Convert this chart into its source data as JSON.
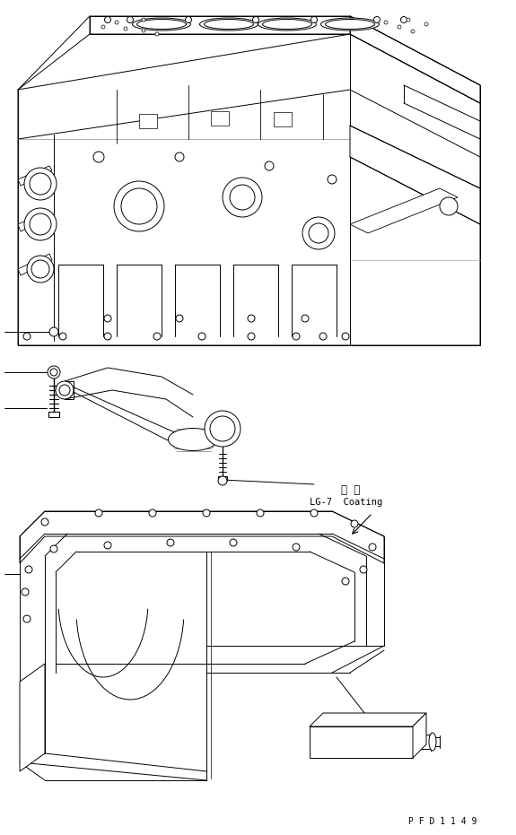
{
  "bg_color": "#ffffff",
  "line_color": "#000000",
  "fig_width": 5.75,
  "fig_height": 9.31,
  "dpi": 100,
  "annotation_coating_jp": "塗 布",
  "annotation_coating_en": "LG-7  Coating",
  "part_number": "P F D 1 1 4 9"
}
